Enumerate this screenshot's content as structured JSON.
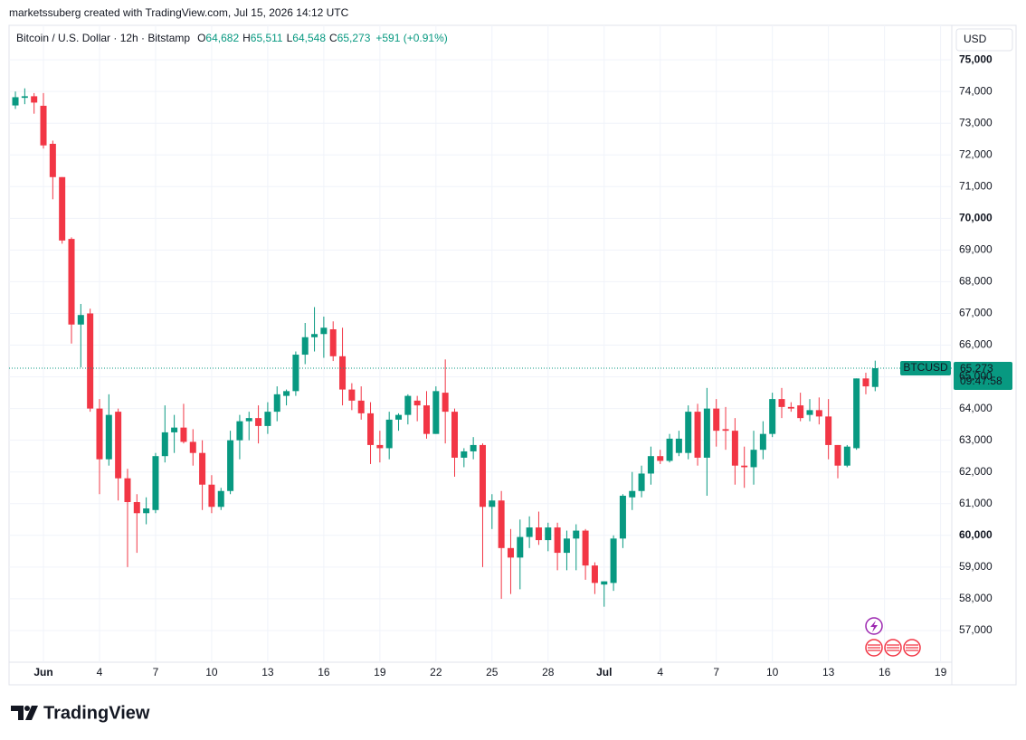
{
  "header": "marketssuberg created with TradingView.com, Jul 15, 2026 14:12 UTC",
  "footer": "TradingView",
  "chart_data": {
    "type": "candlestick",
    "title": "Bitcoin / U.S. Dollar · 12h · Bitstamp",
    "legend": [
      {
        "key": "O",
        "value": "64,682"
      },
      {
        "key": "H",
        "value": "65,511"
      },
      {
        "key": "L",
        "value": "64,548"
      },
      {
        "key": "C",
        "value": "65,273"
      }
    ],
    "change": "+591 (+0.91%)",
    "currency": "USD",
    "price_tag": {
      "symbol": "BTCUSD",
      "price": "65,273",
      "countdown": "09:47:58"
    },
    "up_color": "#089981",
    "down_color": "#f23645",
    "grid": true,
    "open": [
      73560,
      73800,
      73850,
      73550,
      72350,
      71300,
      69350,
      66650,
      67000,
      64000,
      62400,
      63900,
      61800,
      61050,
      60700,
      60800,
      62500,
      63250,
      63400,
      62950,
      62600,
      61600,
      60900,
      61400,
      63000,
      63600,
      63700,
      63450,
      63900,
      64400,
      64550,
      65700,
      66250,
      66350,
      66500,
      65650,
      64600,
      64250,
      63850,
      62850,
      62750,
      63650,
      63800,
      64250,
      64100,
      63200,
      64500,
      63900,
      62450,
      62650,
      62850,
      60900,
      61100,
      59600,
      59300,
      59950,
      60250,
      59850,
      60250,
      59450,
      59900,
      60150,
      59050,
      58450,
      58500,
      59900,
      61200,
      61400,
      61950,
      62500,
      62350,
      62600,
      62600,
      63900,
      62450,
      64000,
      63350,
      63300,
      62200,
      62150,
      62700,
      63200,
      64300,
      64050,
      64100,
      63800,
      63950,
      63750,
      62850,
      62200,
      62750,
      64950,
      64682
    ],
    "high": [
      74000,
      74100,
      73950,
      73950,
      72450,
      71300,
      69400,
      67300,
      67150,
      64300,
      64450,
      64000,
      62100,
      61300,
      61200,
      62600,
      64100,
      63800,
      64150,
      63350,
      63000,
      61900,
      61500,
      63300,
      63800,
      63900,
      64100,
      64200,
      64700,
      64600,
      65800,
      66700,
      67200,
      66900,
      66750,
      66550,
      64800,
      64700,
      64200,
      63300,
      63900,
      63850,
      64450,
      64400,
      64550,
      64700,
      65550,
      64000,
      62750,
      63100,
      62900,
      61300,
      61400,
      60200,
      60500,
      60600,
      60750,
      60400,
      60400,
      60150,
      60350,
      60200,
      59150,
      58550,
      60000,
      61300,
      62000,
      62200,
      62800,
      62700,
      63200,
      63300,
      64100,
      64150,
      64650,
      64300,
      64050,
      63700,
      62800,
      63300,
      63600,
      64500,
      64650,
      64200,
      64500,
      64300,
      64350,
      64300,
      62850,
      62850,
      64950,
      65130,
      65511
    ],
    "low": [
      73450,
      73600,
      73300,
      72200,
      70600,
      69200,
      66050,
      65300,
      63900,
      61300,
      62200,
      61100,
      59000,
      59450,
      60350,
      60700,
      62300,
      62600,
      62900,
      62200,
      60800,
      60700,
      60800,
      61300,
      62400,
      63000,
      62900,
      63200,
      63600,
      64100,
      64400,
      65400,
      65800,
      65600,
      65500,
      64100,
      63950,
      63650,
      62250,
      62300,
      62400,
      63300,
      63500,
      63600,
      63050,
      63200,
      62900,
      61850,
      62150,
      62400,
      59000,
      60200,
      58000,
      58150,
      58300,
      59600,
      59700,
      59500,
      58900,
      58900,
      58900,
      58600,
      58150,
      57750,
      58250,
      59600,
      60800,
      61200,
      61600,
      62250,
      62300,
      62500,
      62400,
      62200,
      61250,
      62800,
      62700,
      61600,
      61500,
      61600,
      62400,
      63100,
      63700,
      63900,
      63600,
      63600,
      63500,
      62400,
      61800,
      62150,
      62700,
      64450,
      64548
    ],
    "close": [
      73820,
      73850,
      73650,
      72300,
      71300,
      69300,
      66650,
      66950,
      64000,
      62400,
      63800,
      61800,
      61050,
      60700,
      60850,
      62500,
      63250,
      63400,
      62950,
      62600,
      61600,
      60900,
      61400,
      63000,
      63600,
      63700,
      63450,
      63900,
      64450,
      64550,
      65700,
      66250,
      66350,
      66550,
      65650,
      64600,
      64250,
      63850,
      62850,
      62750,
      63650,
      63800,
      64400,
      64100,
      63200,
      64550,
      63900,
      62450,
      62650,
      62850,
      60900,
      61100,
      59600,
      59300,
      59950,
      60250,
      59850,
      60250,
      59450,
      59900,
      60150,
      59050,
      58500,
      58550,
      59900,
      61250,
      61400,
      61950,
      62500,
      62350,
      63050,
      63050,
      63900,
      62450,
      64000,
      63300,
      63300,
      62200,
      62150,
      62700,
      63200,
      64300,
      64050,
      64000,
      63700,
      63950,
      63750,
      62850,
      62200,
      62800,
      64950,
      64700,
      65273
    ],
    "xlim": [
      -0.68,
      100.2
    ],
    "xticks": [
      {
        "value": 3,
        "label": "Jun",
        "bold": true
      },
      {
        "value": 9,
        "label": "4"
      },
      {
        "value": 15,
        "label": "7"
      },
      {
        "value": 21,
        "label": "10"
      },
      {
        "value": 27,
        "label": "13"
      },
      {
        "value": 33,
        "label": "16"
      },
      {
        "value": 39,
        "label": "19"
      },
      {
        "value": 45,
        "label": "22"
      },
      {
        "value": 51,
        "label": "25"
      },
      {
        "value": 57,
        "label": "28"
      },
      {
        "value": 63,
        "label": "Jul",
        "bold": true
      },
      {
        "value": 69,
        "label": "4"
      },
      {
        "value": 75,
        "label": "7"
      },
      {
        "value": 81,
        "label": "10"
      },
      {
        "value": 87,
        "label": "13"
      },
      {
        "value": 93,
        "label": "16"
      },
      {
        "value": 99,
        "label": "19"
      }
    ],
    "ylim": [
      56000,
      76030
    ],
    "yticks": [
      {
        "value": 57000,
        "label": "57,000"
      },
      {
        "value": 58000,
        "label": "58,000"
      },
      {
        "value": 59000,
        "label": "59,000"
      },
      {
        "value": 60000,
        "label": "60,000",
        "bold": true
      },
      {
        "value": 61000,
        "label": "61,000"
      },
      {
        "value": 62000,
        "label": "62,000"
      },
      {
        "value": 63000,
        "label": "63,000"
      },
      {
        "value": 64000,
        "label": "64,000"
      },
      {
        "value": 65000,
        "label": "65,000"
      },
      {
        "value": 66000,
        "label": "66,000"
      },
      {
        "value": 67000,
        "label": "67,000"
      },
      {
        "value": 68000,
        "label": "68,000"
      },
      {
        "value": 69000,
        "label": "69,000"
      },
      {
        "value": 70000,
        "label": "70,000",
        "bold": true
      },
      {
        "value": 71000,
        "label": "71,000"
      },
      {
        "value": 72000,
        "label": "72,000"
      },
      {
        "value": 73000,
        "label": "73,000"
      },
      {
        "value": 74000,
        "label": "74,000"
      },
      {
        "value": 75000,
        "label": "75,000",
        "bold": true
      }
    ]
  }
}
